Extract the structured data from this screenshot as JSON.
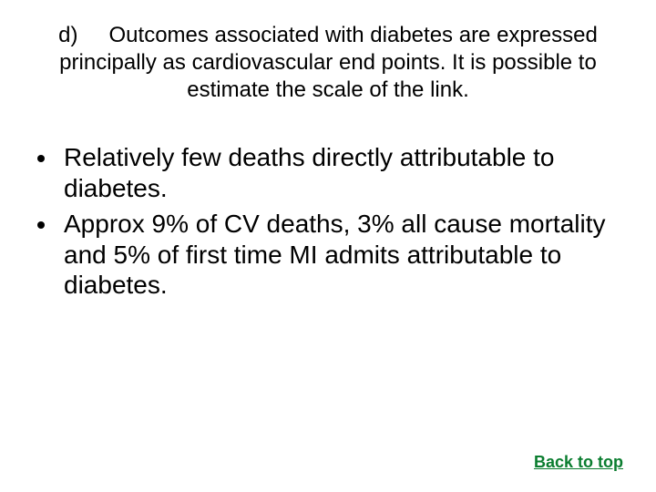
{
  "heading": {
    "marker": "d)",
    "text": "Outcomes associated with diabetes are expressed principally as cardiovascular end points. It is possible to estimate the scale of the link."
  },
  "bullets": [
    "Relatively few deaths directly attributable to diabetes.",
    "Approx 9% of CV deaths, 3% all cause mortality and 5% of first time MI admits attributable to diabetes."
  ],
  "link": {
    "label": "Back to top",
    "color": "#0a7d2f"
  },
  "colors": {
    "text": "#000000",
    "background": "#ffffff"
  }
}
